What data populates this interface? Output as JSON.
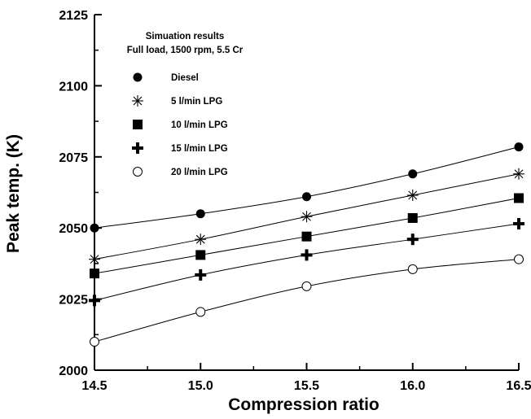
{
  "chart_data": {
    "type": "line",
    "title": "",
    "annotation": [
      "Simuation results",
      "Full load, 1500 rpm, 5.5 Cr"
    ],
    "xlabel": "Compression ratio",
    "ylabel": "Peak temp. (K)",
    "xlim": [
      14.5,
      16.5
    ],
    "ylim": [
      2000,
      2125
    ],
    "xticks": [
      "14.5",
      "15.0",
      "15.5",
      "16.0",
      "16.5"
    ],
    "yticks": [
      "2000",
      "2025",
      "2050",
      "2075",
      "2100",
      "2125"
    ],
    "x": [
      14.5,
      15.0,
      15.5,
      16.0,
      16.5
    ],
    "grid": false,
    "legend_position": "top-left",
    "series": [
      {
        "name": "Diesel",
        "marker": "filled-circle",
        "values": [
          2050,
          2055,
          2061,
          2069,
          2078.5
        ]
      },
      {
        "name": "5 l/min LPG",
        "marker": "asterisk",
        "values": [
          2039,
          2046,
          2054,
          2061.5,
          2069
        ]
      },
      {
        "name": "10 l/min LPG",
        "marker": "filled-square",
        "values": [
          2034,
          2040.5,
          2047,
          2053.5,
          2060.5
        ]
      },
      {
        "name": "15 l/min LPG",
        "marker": "plus",
        "values": [
          2024.5,
          2033.5,
          2040.5,
          2046,
          2051.5
        ]
      },
      {
        "name": "20 l/min LPG",
        "marker": "open-circle",
        "values": [
          2010,
          2020.5,
          2029.5,
          2035.5,
          2039
        ]
      }
    ]
  }
}
